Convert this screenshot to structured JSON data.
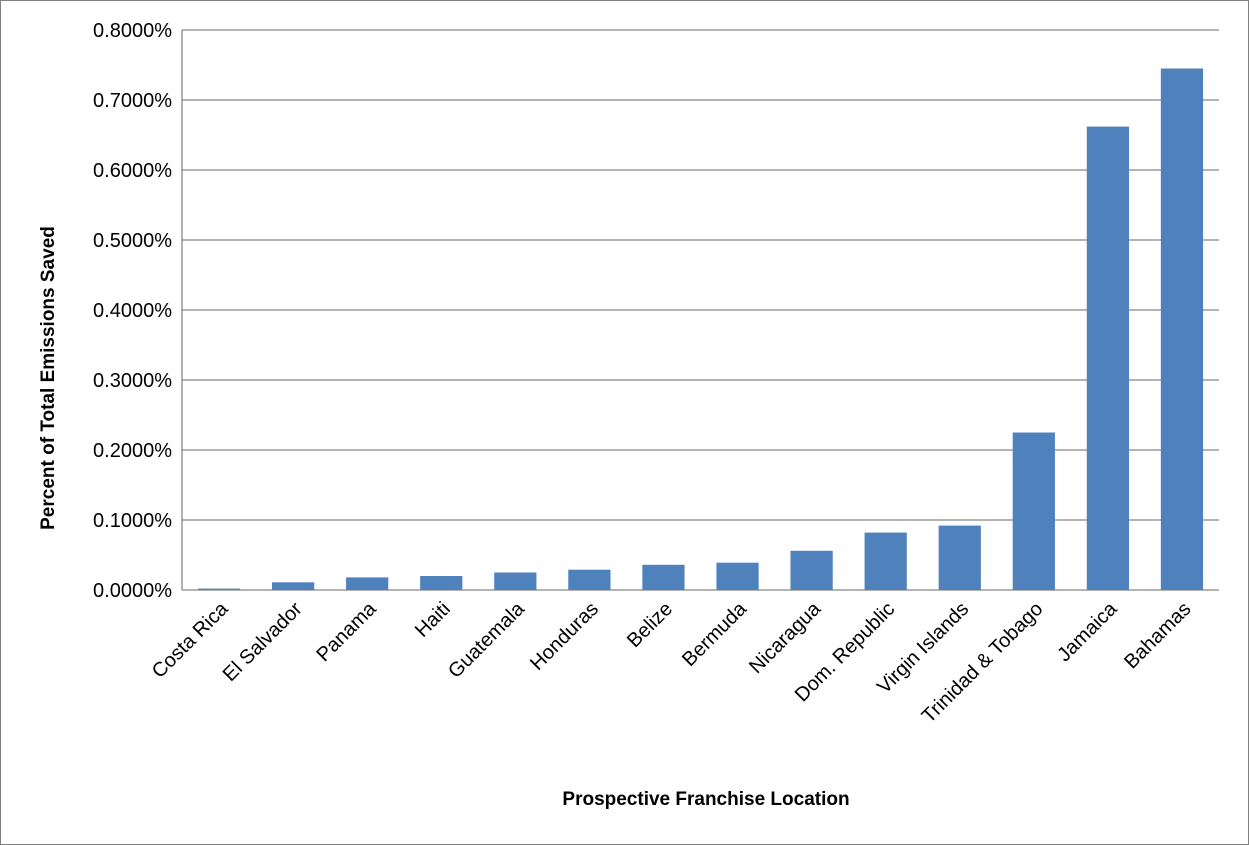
{
  "chart_data": {
    "type": "bar",
    "xlabel": "Prospective Franchise Location",
    "ylabel": "Percent of Total Emissions Saved",
    "ylim": [
      0,
      0.008
    ],
    "y_ticks": [
      "0.0000%",
      "0.1000%",
      "0.2000%",
      "0.3000%",
      "0.4000%",
      "0.5000%",
      "0.6000%",
      "0.7000%",
      "0.8000%"
    ],
    "y_tick_values": [
      0,
      0.001,
      0.002,
      0.003,
      0.004,
      0.005,
      0.006,
      0.007,
      0.008
    ],
    "grid": true,
    "legend": "none",
    "categories": [
      "Costa Rica",
      "El Salvador",
      "Panama",
      "Haiti",
      "Guatemala",
      "Honduras",
      "Belize",
      "Bermuda",
      "Nicaragua",
      "Dom. Republic",
      "Virgin Islands",
      "Trinidad & Tobago",
      "Jamaica",
      "Bahamas"
    ],
    "values": [
      2e-05,
      0.00011,
      0.00018,
      0.0002,
      0.00025,
      0.00029,
      0.00036,
      0.00039,
      0.00056,
      0.00082,
      0.00092,
      0.00225,
      0.00662,
      0.00745
    ],
    "bar_color": "#4f81bd",
    "gridline_color": "#868686"
  }
}
